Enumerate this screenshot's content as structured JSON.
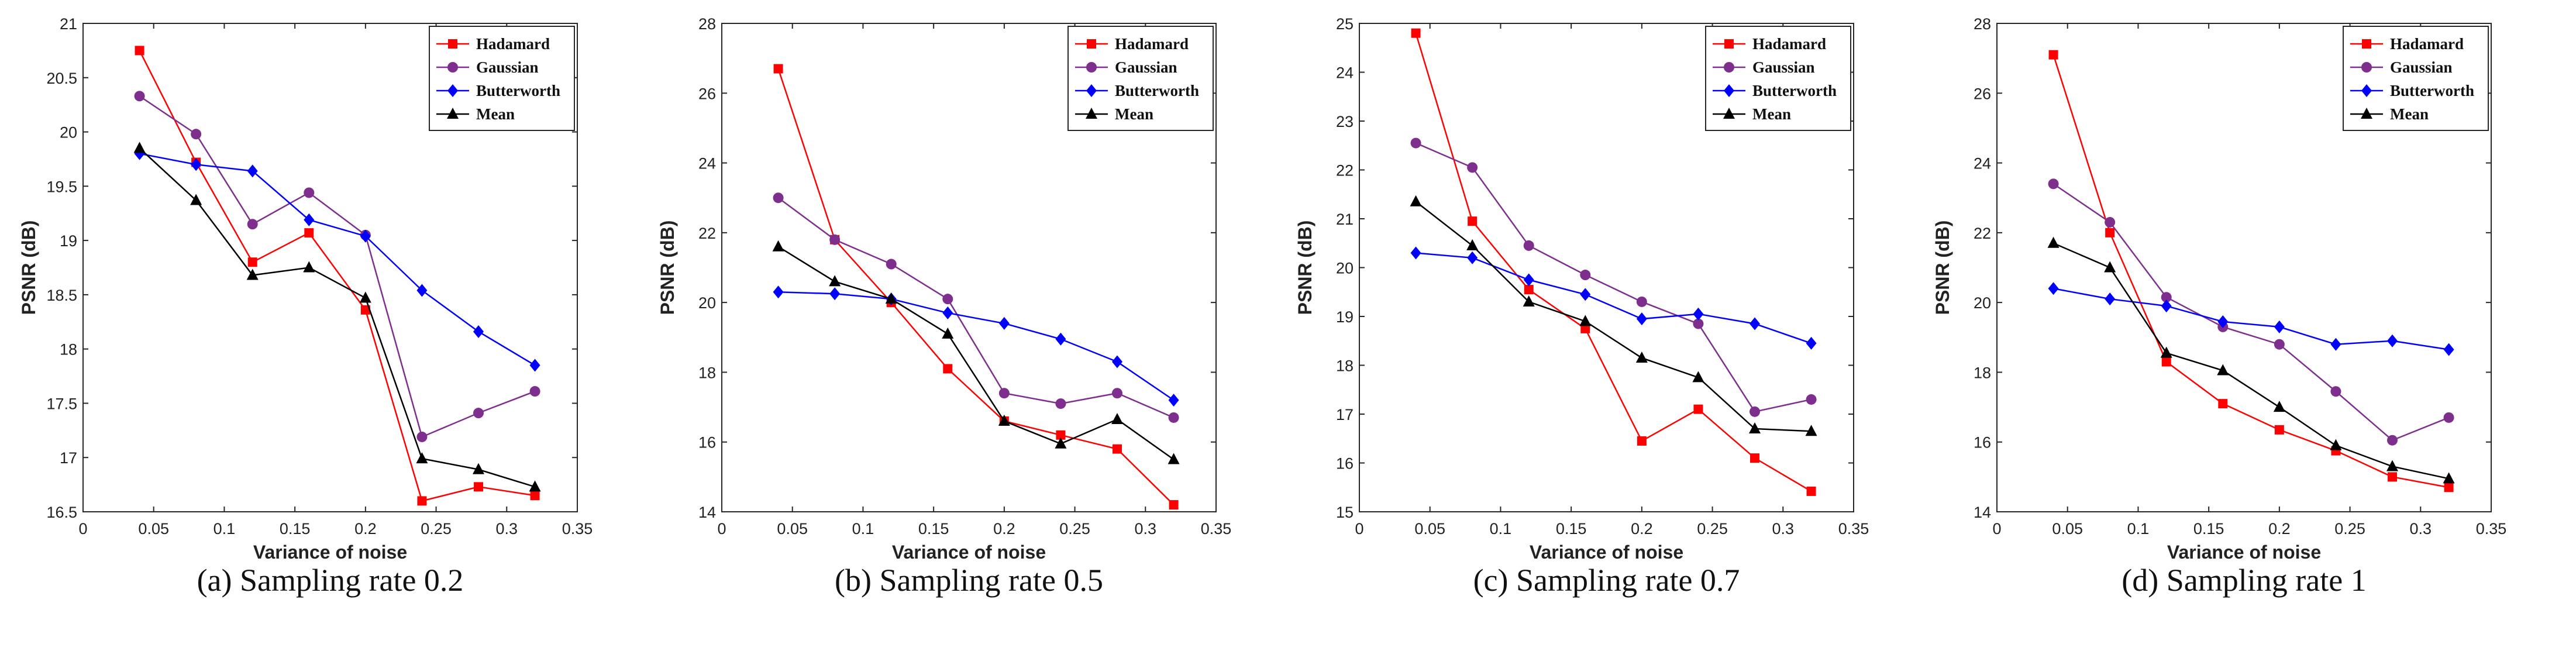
{
  "colors": {
    "Hadamard": "#ff0000",
    "Gaussian": "#7e2f8e",
    "Butterworth": "#0000ff",
    "Mean": "#000000"
  },
  "markers": {
    "Hadamard": "square",
    "Gaussian": "circle",
    "Butterworth": "diamond",
    "Mean": "triangle"
  },
  "chart_data": [
    {
      "type": "line",
      "caption": "(a) Sampling rate 0.2",
      "xlabel": "Variance of noise",
      "ylabel": "PSNR (dB)",
      "xlim": [
        0,
        0.35
      ],
      "ylim": [
        16.5,
        21
      ],
      "xticks": [
        "0",
        "0.05",
        "0.1",
        "0.15",
        "0.2",
        "0.25",
        "0.3",
        "0.35"
      ],
      "yticks": [
        "16.5",
        "17",
        "17.5",
        "18",
        "18.5",
        "19",
        "19.5",
        "20",
        "20.5",
        "21"
      ],
      "x": [
        0.04,
        0.08,
        0.12,
        0.16,
        0.2,
        0.24,
        0.28,
        0.32
      ],
      "series": [
        {
          "name": "Hadamard",
          "values": [
            20.75,
            19.72,
            18.8,
            19.07,
            18.36,
            16.6,
            16.73,
            16.65
          ]
        },
        {
          "name": "Gaussian",
          "values": [
            20.33,
            19.98,
            19.15,
            19.44,
            19.05,
            17.19,
            17.41,
            17.61
          ]
        },
        {
          "name": "Butterworth",
          "values": [
            19.8,
            19.7,
            19.64,
            19.19,
            19.04,
            18.54,
            18.16,
            17.85
          ]
        },
        {
          "name": "Mean",
          "values": [
            19.85,
            19.37,
            18.68,
            18.75,
            18.47,
            16.99,
            16.89,
            16.73
          ]
        }
      ]
    },
    {
      "type": "line",
      "caption": "(b) Sampling rate 0.5",
      "xlabel": "Variance of noise",
      "ylabel": "PSNR (dB)",
      "xlim": [
        0,
        0.35
      ],
      "ylim": [
        14,
        28
      ],
      "xticks": [
        "0",
        "0.05",
        "0.1",
        "0.15",
        "0.2",
        "0.25",
        "0.3",
        "0.35"
      ],
      "yticks": [
        "14",
        "16",
        "18",
        "20",
        "22",
        "24",
        "26",
        "28"
      ],
      "x": [
        0.04,
        0.08,
        0.12,
        0.16,
        0.2,
        0.24,
        0.28,
        0.32
      ],
      "series": [
        {
          "name": "Hadamard",
          "values": [
            26.7,
            21.8,
            20.0,
            18.1,
            16.6,
            16.2,
            15.8,
            14.2
          ]
        },
        {
          "name": "Gaussian",
          "values": [
            23.0,
            21.8,
            21.1,
            20.1,
            17.4,
            17.1,
            17.4,
            16.7
          ]
        },
        {
          "name": "Butterworth",
          "values": [
            20.3,
            20.25,
            20.1,
            19.7,
            19.4,
            18.95,
            18.3,
            17.2
          ]
        },
        {
          "name": "Mean",
          "values": [
            21.6,
            20.6,
            20.1,
            19.1,
            16.6,
            15.95,
            16.65,
            15.5
          ]
        }
      ]
    },
    {
      "type": "line",
      "caption": "(c) Sampling rate 0.7",
      "xlabel": "Variance of noise",
      "ylabel": "PSNR (dB)",
      "xlim": [
        0,
        0.35
      ],
      "ylim": [
        15,
        25
      ],
      "xticks": [
        "0",
        "0.05",
        "0.1",
        "0.15",
        "0.2",
        "0.25",
        "0.3",
        "0.35"
      ],
      "yticks": [
        "15",
        "16",
        "17",
        "18",
        "19",
        "20",
        "21",
        "22",
        "23",
        "24",
        "25"
      ],
      "x": [
        0.04,
        0.08,
        0.12,
        0.16,
        0.2,
        0.24,
        0.28,
        0.32
      ],
      "series": [
        {
          "name": "Hadamard",
          "values": [
            24.8,
            20.95,
            19.55,
            18.75,
            16.45,
            17.1,
            16.1,
            15.42
          ]
        },
        {
          "name": "Gaussian",
          "values": [
            22.55,
            22.05,
            20.45,
            19.85,
            19.3,
            18.85,
            17.05,
            17.3
          ]
        },
        {
          "name": "Butterworth",
          "values": [
            20.3,
            20.2,
            19.75,
            19.45,
            18.95,
            19.05,
            18.85,
            18.45
          ]
        },
        {
          "name": "Mean",
          "values": [
            21.35,
            20.45,
            19.3,
            18.9,
            18.15,
            17.75,
            16.7,
            16.65
          ]
        }
      ]
    },
    {
      "type": "line",
      "caption": "(d) Sampling rate 1",
      "xlabel": "Variance of noise",
      "ylabel": "PSNR (dB)",
      "xlim": [
        0,
        0.35
      ],
      "ylim": [
        14,
        28
      ],
      "xticks": [
        "0",
        "0.05",
        "0.1",
        "0.15",
        "0.2",
        "0.25",
        "0.3",
        "0.35"
      ],
      "yticks": [
        "14",
        "16",
        "18",
        "20",
        "22",
        "24",
        "26",
        "28"
      ],
      "x": [
        0.04,
        0.08,
        0.12,
        0.16,
        0.2,
        0.24,
        0.28,
        0.32
      ],
      "series": [
        {
          "name": "Hadamard",
          "values": [
            27.1,
            22.0,
            18.3,
            17.1,
            16.35,
            15.75,
            15.0,
            14.7
          ]
        },
        {
          "name": "Gaussian",
          "values": [
            23.4,
            22.3,
            20.15,
            19.3,
            18.8,
            17.45,
            16.05,
            16.7
          ]
        },
        {
          "name": "Butterworth",
          "values": [
            20.4,
            20.1,
            19.9,
            19.45,
            19.3,
            18.8,
            18.9,
            18.65
          ]
        },
        {
          "name": "Mean",
          "values": [
            21.7,
            21.0,
            18.55,
            18.05,
            17.0,
            15.9,
            15.3,
            14.95
          ]
        }
      ]
    }
  ]
}
